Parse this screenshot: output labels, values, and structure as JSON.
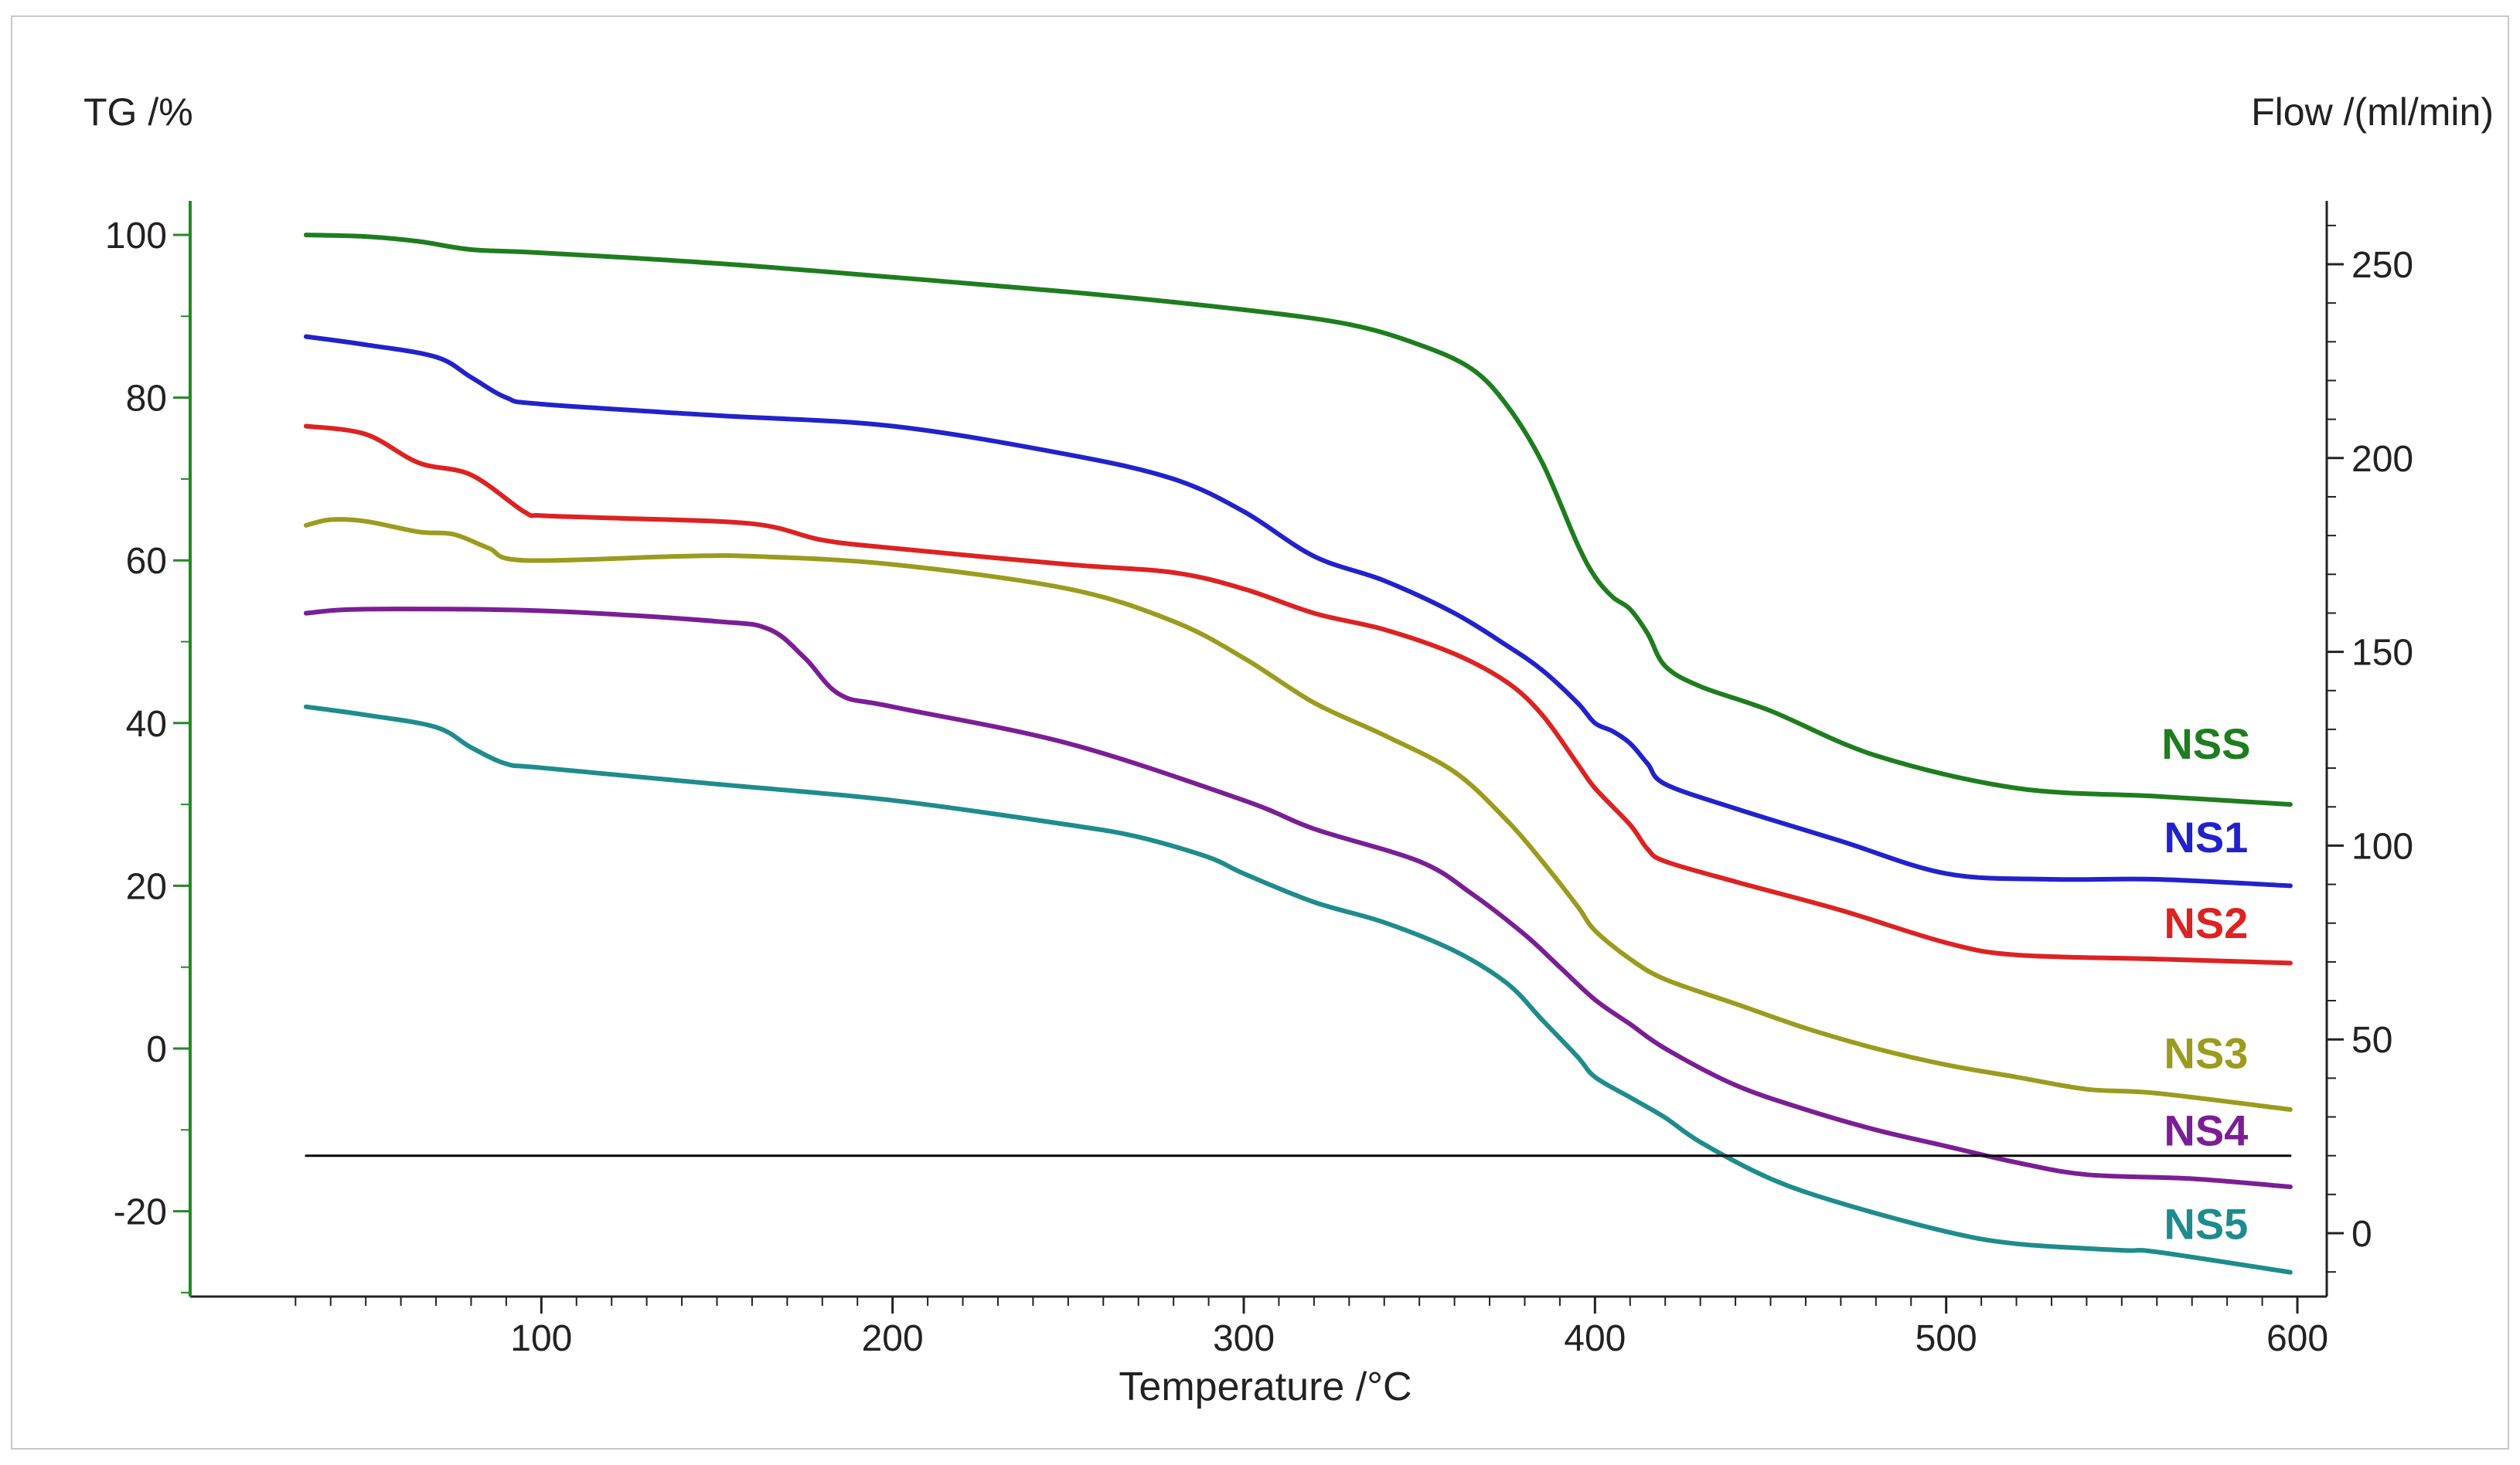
{
  "chart_data": {
    "type": "line",
    "title": "",
    "xlabel": "Temperature /°C",
    "ylabel_left": "TG /%",
    "ylabel_right": "Flow /(ml/min)",
    "xlim": [
      20,
      600
    ],
    "ylim_left": [
      -30,
      103
    ],
    "ylim_right": [
      -18,
      268
    ],
    "xticks": [
      100,
      200,
      300,
      400,
      500,
      600
    ],
    "xtick_labels": [
      "100",
      "200",
      "300",
      "400",
      "500",
      "600"
    ],
    "yticks_left": [
      100,
      80,
      60,
      40,
      20,
      0,
      -20
    ],
    "ytick_labels_left": [
      "100",
      "80",
      "60",
      "40",
      "20",
      "0",
      "-20"
    ],
    "yticks_right": [
      250,
      200,
      150,
      100,
      50,
      0
    ],
    "ytick_labels_right": [
      "250",
      "200",
      "150",
      "100",
      "50",
      "0"
    ],
    "grid": false,
    "series": [
      {
        "name": "NSS",
        "axis": "left",
        "color": "#1e7d1e",
        "x": [
          33,
          50,
          65,
          80,
          100,
          150,
          200,
          250,
          300,
          330,
          350,
          365,
          375,
          385,
          395,
          400,
          405,
          410,
          415,
          420,
          430,
          450,
          480,
          520,
          560,
          598
        ],
        "y": [
          100,
          99.8,
          99.2,
          98.2,
          97.8,
          96.5,
          94.8,
          93,
          90.8,
          89,
          86.5,
          83.5,
          79,
          72,
          62,
          58,
          55.5,
          54,
          51,
          47,
          44.5,
          41.5,
          36,
          32,
          31,
          30
        ]
      },
      {
        "name": "NS1",
        "axis": "left",
        "color": "#2222cc",
        "x": [
          33,
          50,
          70,
          80,
          90,
          100,
          150,
          200,
          250,
          280,
          300,
          320,
          340,
          360,
          375,
          385,
          395,
          400,
          405,
          410,
          415,
          420,
          440,
          470,
          500,
          530,
          560,
          598
        ],
        "y": [
          87.5,
          86.5,
          85,
          82.5,
          80,
          79.2,
          77.8,
          76.5,
          73,
          70,
          66,
          60.5,
          57.5,
          53.5,
          49.5,
          46.5,
          42.5,
          40,
          39,
          37.5,
          35,
          32.5,
          29.5,
          25.5,
          21.5,
          20.8,
          20.8,
          20
        ]
      },
      {
        "name": "NS2",
        "axis": "left",
        "color": "#dd2222",
        "x": [
          33,
          50,
          65,
          80,
          95,
          100,
          120,
          160,
          180,
          200,
          250,
          280,
          300,
          320,
          340,
          360,
          375,
          385,
          395,
          400,
          410,
          415,
          420,
          440,
          470,
          500,
          520,
          560,
          598
        ],
        "y": [
          76.5,
          75.5,
          72,
          70.5,
          66,
          65.5,
          65.2,
          64.5,
          62.5,
          61.5,
          59.5,
          58.5,
          56.5,
          53.5,
          51.5,
          48.5,
          45,
          41,
          35,
          32,
          27.5,
          24.5,
          23,
          20.5,
          17,
          13,
          11.5,
          11,
          10.5
        ]
      },
      {
        "name": "NS3",
        "axis": "left",
        "color": "#9b9b1e",
        "x": [
          33,
          40,
          50,
          65,
          75,
          85,
          95,
          140,
          160,
          200,
          250,
          280,
          300,
          320,
          340,
          360,
          375,
          385,
          395,
          400,
          410,
          420,
          440,
          460,
          480,
          500,
          520,
          540,
          560,
          598
        ],
        "y": [
          64.3,
          65,
          64.8,
          63.5,
          63.2,
          61.5,
          60,
          60.5,
          60.5,
          59.5,
          56.5,
          52.5,
          48,
          42.5,
          38.5,
          34,
          28,
          23,
          17.5,
          14.5,
          11,
          8.5,
          5.5,
          2.5,
          0,
          -2,
          -3.5,
          -5,
          -5.5,
          -7.5
        ]
      },
      {
        "name": "NS4",
        "axis": "left",
        "color": "#7b1e96",
        "x": [
          33,
          50,
          100,
          150,
          165,
          175,
          185,
          200,
          250,
          300,
          320,
          350,
          365,
          380,
          390,
          400,
          410,
          420,
          440,
          460,
          480,
          500,
          520,
          540,
          570,
          598
        ],
        "y": [
          53.5,
          54,
          53.8,
          52.5,
          51.5,
          48,
          43.5,
          42,
          37.5,
          30.5,
          27,
          23,
          19,
          14,
          10,
          6,
          3,
          0,
          -4.5,
          -7.5,
          -10,
          -12,
          -14,
          -15.5,
          -16,
          -17
        ]
      },
      {
        "name": "NS5",
        "axis": "left",
        "color": "#1e8c8c",
        "x": [
          33,
          50,
          70,
          80,
          90,
          100,
          150,
          200,
          250,
          270,
          290,
          300,
          320,
          340,
          360,
          375,
          385,
          395,
          400,
          410,
          420,
          430,
          450,
          470,
          500,
          520,
          550,
          560,
          598
        ],
        "y": [
          42,
          41,
          39.5,
          37,
          35,
          34.5,
          32.5,
          30.5,
          27.5,
          26,
          23.5,
          21.5,
          18,
          15.5,
          12,
          8,
          3.5,
          -1,
          -3.5,
          -6,
          -8.5,
          -11.5,
          -16,
          -19,
          -22.5,
          -24,
          -24.8,
          -25,
          -27.5
        ]
      },
      {
        "name": "Flow",
        "axis": "right",
        "color": "#000000",
        "x": [
          33,
          598
        ],
        "y": [
          20,
          20
        ]
      }
    ],
    "legend": "inline labels at right end of curves"
  }
}
